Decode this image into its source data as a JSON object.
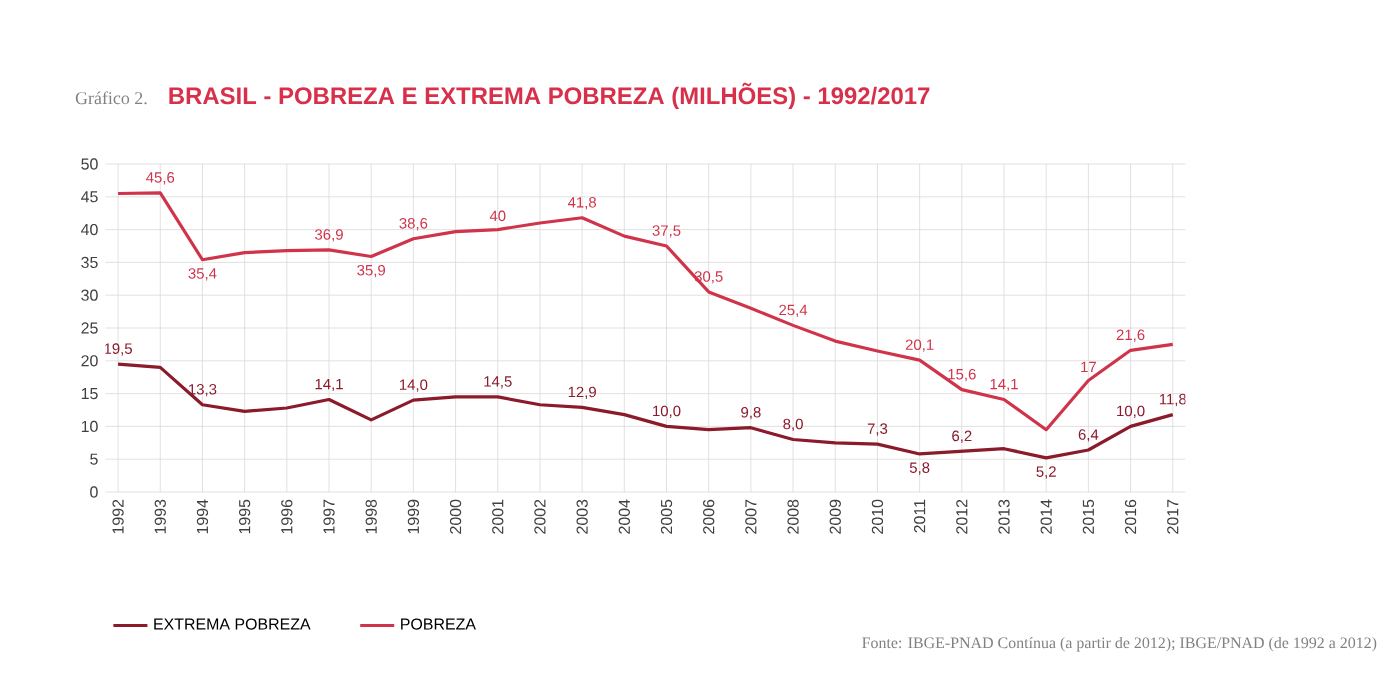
{
  "chart_data": {
    "type": "line",
    "subtitle": "Gráfico 2.",
    "title": "BRASIL - POBREZA E EXTREMA POBREZA (MILHÕES) - 1992/2017",
    "categories": [
      "1992",
      "1993",
      "1994",
      "1995",
      "1996",
      "1997",
      "1998",
      "1999",
      "2000",
      "2001",
      "2002",
      "2003",
      "2004",
      "2005",
      "2006",
      "2007",
      "2008",
      "2009",
      "2010",
      "2011",
      "2012",
      "2013",
      "2014",
      "2015",
      "2016",
      "2017"
    ],
    "series": [
      {
        "name": "EXTREMA POBREZA",
        "color": "#8b1a2b",
        "values": [
          19.5,
          19.0,
          13.3,
          12.3,
          12.8,
          14.1,
          11.0,
          14.0,
          14.5,
          14.5,
          13.3,
          12.9,
          11.8,
          10.0,
          9.5,
          9.8,
          8.0,
          7.5,
          7.3,
          5.8,
          6.2,
          6.6,
          5.2,
          6.4,
          10.0,
          11.8
        ],
        "value_labels": [
          "19,5",
          null,
          "13,3",
          null,
          null,
          "14,1",
          null,
          "14,0",
          null,
          "14,5",
          null,
          "12,9",
          null,
          "10,0",
          null,
          "9,8",
          "8,0",
          null,
          "7,3",
          "5,8",
          "6,2",
          null,
          "5,2",
          "6,4",
          "10,0",
          "11,8"
        ]
      },
      {
        "name": "POBREZA",
        "color": "#d0344a",
        "values": [
          45.5,
          45.6,
          35.4,
          36.5,
          36.8,
          36.9,
          35.9,
          38.6,
          39.7,
          40,
          41,
          41.8,
          39,
          37.5,
          30.5,
          28,
          25.4,
          23,
          21.5,
          20.1,
          15.6,
          14.1,
          9.5,
          17,
          21.6,
          22.5
        ],
        "value_labels": [
          null,
          "45,6",
          "35,4",
          null,
          null,
          "36,9",
          "35,9",
          "38,6",
          null,
          "40",
          null,
          "41,8",
          null,
          "37,5",
          "30,5",
          null,
          "25,4",
          null,
          null,
          "20,1",
          "15,6",
          "14,1",
          null,
          "17",
          "21,6",
          null
        ]
      }
    ],
    "ylim": [
      0,
      50
    ],
    "yticks": [
      0,
      5,
      10,
      15,
      20,
      25,
      30,
      35,
      40,
      45,
      50
    ],
    "grid": true,
    "legend": "bottom left",
    "marker": "none",
    "line_style": "solid",
    "annotations": [
      "Fonte: IBGE-PNAD Contínua  (a partir de 2012); IBGE/PNAD (de 1992 a 2012)"
    ]
  }
}
